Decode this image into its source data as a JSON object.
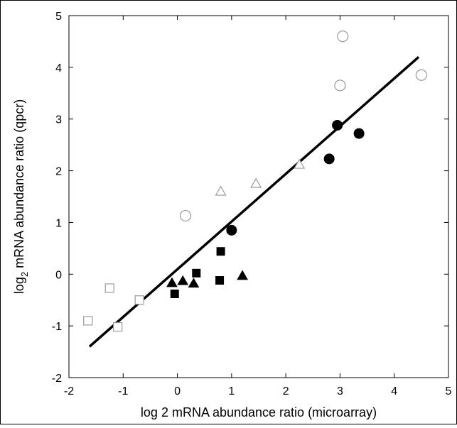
{
  "chart_data": {
    "type": "scatter",
    "title": "",
    "xlabel": "log 2 mRNA abundance ratio (microarray)",
    "ylabel_main": "log",
    "ylabel_sub": "2",
    "ylabel_rest": " mRNA abundance ratio (qpcr)",
    "xlim": [
      -2,
      5
    ],
    "ylim": [
      -2,
      5
    ],
    "x_ticks": [
      -2,
      -1,
      0,
      1,
      2,
      3,
      4,
      5
    ],
    "y_ticks": [
      -2,
      -1,
      0,
      1,
      2,
      3,
      4,
      5
    ],
    "grid": false,
    "colors": {
      "axis": "#000000",
      "filled": "#000000",
      "open_stroke": "#9a9a9a",
      "fit_line": "#000000"
    },
    "series": [
      {
        "marker": "circle",
        "filled": true,
        "points": [
          [
            1.0,
            0.85
          ],
          [
            2.8,
            2.23
          ],
          [
            2.95,
            2.88
          ],
          [
            3.35,
            2.72
          ]
        ]
      },
      {
        "marker": "circle",
        "filled": false,
        "points": [
          [
            0.15,
            1.13
          ],
          [
            3.0,
            3.65
          ],
          [
            3.05,
            4.6
          ],
          [
            4.5,
            3.85
          ]
        ]
      },
      {
        "marker": "square",
        "filled": true,
        "points": [
          [
            -0.05,
            -0.38
          ],
          [
            0.35,
            0.02
          ],
          [
            0.78,
            -0.12
          ],
          [
            0.8,
            0.44
          ]
        ]
      },
      {
        "marker": "square",
        "filled": false,
        "points": [
          [
            -1.65,
            -0.9
          ],
          [
            -1.25,
            -0.27
          ],
          [
            -1.1,
            -1.02
          ],
          [
            -0.7,
            -0.5
          ]
        ]
      },
      {
        "marker": "triangle",
        "filled": true,
        "points": [
          [
            -0.1,
            -0.17
          ],
          [
            0.1,
            -0.13
          ],
          [
            0.3,
            -0.18
          ],
          [
            1.2,
            -0.03
          ]
        ]
      },
      {
        "marker": "triangle",
        "filled": false,
        "points": [
          [
            0.8,
            1.6
          ],
          [
            1.45,
            1.75
          ],
          [
            2.25,
            2.12
          ]
        ]
      }
    ],
    "fit_line": {
      "x": [
        -1.62,
        4.45
      ],
      "y": [
        -1.4,
        4.2
      ]
    }
  }
}
